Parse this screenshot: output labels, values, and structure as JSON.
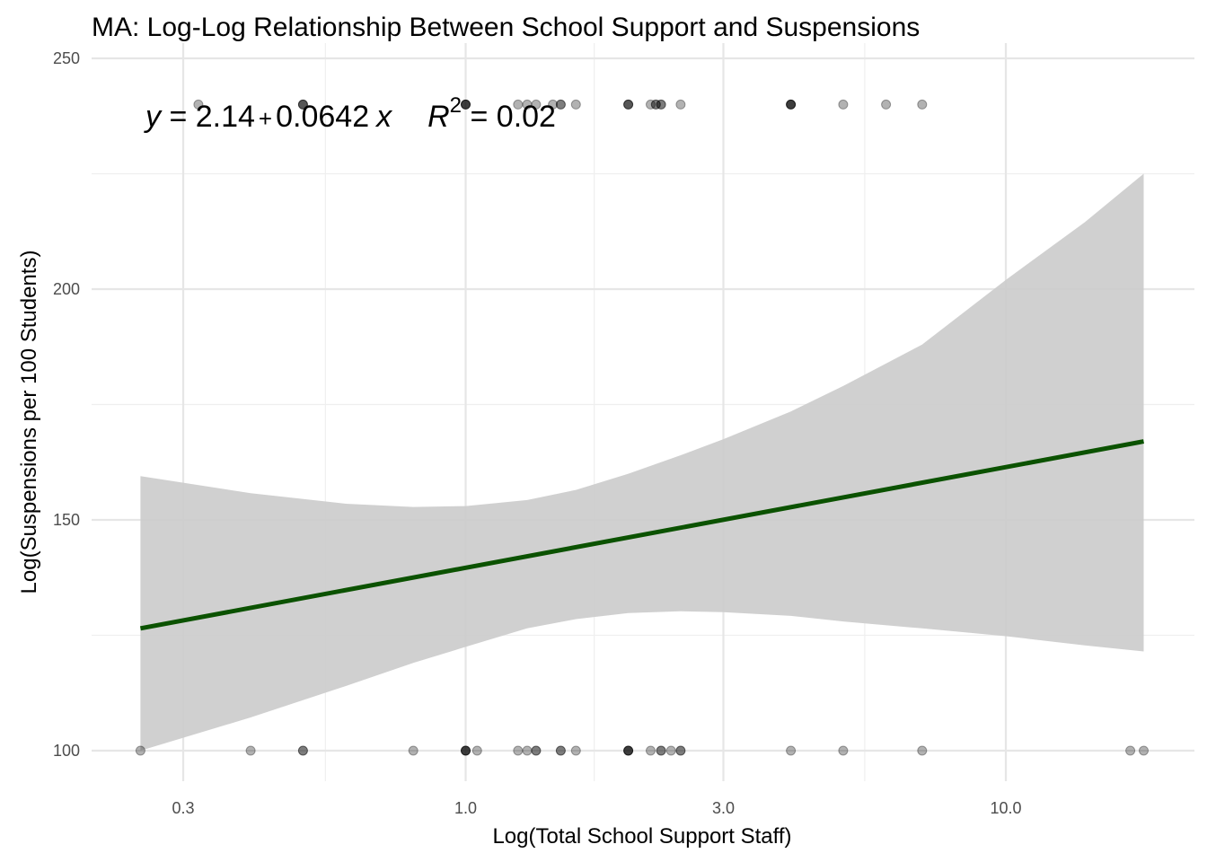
{
  "chart_data": {
    "type": "scatter",
    "title": "MA: Log-Log Relationship Between School Support and Suspensions",
    "xlabel": "Log(Total School Support Staff)",
    "ylabel": "Log(Suspensions per 100 Students)",
    "x_scale": "log10",
    "xlim": [
      0.2,
      20.5
    ],
    "ylim": [
      93,
      252
    ],
    "x_ticks": [
      0.3,
      1.0,
      3.0,
      10.0
    ],
    "x_tick_labels": [
      "0.3",
      "1.0",
      "3.0",
      "10.0"
    ],
    "x_minor_ticks": [
      0.55,
      1.73,
      5.48
    ],
    "y_ticks": [
      100,
      150,
      200,
      250
    ],
    "y_tick_labels": [
      "100",
      "150",
      "200",
      "250"
    ],
    "y_minor_ticks": [
      125,
      175,
      225
    ],
    "grid": true,
    "annotation": {
      "eq_y": "y",
      "eq_equals": " = 2.14",
      "eq_plus": "+",
      "eq_coef": "0.0642",
      "eq_x": "x",
      "r2_R": "R",
      "r2_sup": "2",
      "r2_value": " = 0.02"
    },
    "points": [
      {
        "x": 0.25,
        "y": 100,
        "w": 1
      },
      {
        "x": 0.4,
        "y": 100,
        "w": 1
      },
      {
        "x": 0.5,
        "y": 100,
        "w": 2
      },
      {
        "x": 0.8,
        "y": 100,
        "w": 1
      },
      {
        "x": 1.0,
        "y": 100,
        "w": 4
      },
      {
        "x": 1.05,
        "y": 100,
        "w": 1
      },
      {
        "x": 1.25,
        "y": 100,
        "w": 1
      },
      {
        "x": 1.3,
        "y": 100,
        "w": 1
      },
      {
        "x": 1.35,
        "y": 100,
        "w": 2
      },
      {
        "x": 1.5,
        "y": 100,
        "w": 2
      },
      {
        "x": 1.6,
        "y": 100,
        "w": 1
      },
      {
        "x": 2.0,
        "y": 100,
        "w": 4
      },
      {
        "x": 2.2,
        "y": 100,
        "w": 1
      },
      {
        "x": 2.3,
        "y": 100,
        "w": 2
      },
      {
        "x": 2.4,
        "y": 100,
        "w": 1
      },
      {
        "x": 2.5,
        "y": 100,
        "w": 2
      },
      {
        "x": 4.0,
        "y": 100,
        "w": 1
      },
      {
        "x": 5.0,
        "y": 100,
        "w": 1
      },
      {
        "x": 7.0,
        "y": 100,
        "w": 1
      },
      {
        "x": 17.0,
        "y": 100,
        "w": 1
      },
      {
        "x": 18.0,
        "y": 100,
        "w": 1
      },
      {
        "x": 0.32,
        "y": 240,
        "w": 1
      },
      {
        "x": 0.5,
        "y": 240,
        "w": 3
      },
      {
        "x": 1.0,
        "y": 240,
        "w": 4
      },
      {
        "x": 1.25,
        "y": 240,
        "w": 1
      },
      {
        "x": 1.3,
        "y": 240,
        "w": 1
      },
      {
        "x": 1.35,
        "y": 240,
        "w": 1
      },
      {
        "x": 1.45,
        "y": 240,
        "w": 1
      },
      {
        "x": 1.5,
        "y": 240,
        "w": 2
      },
      {
        "x": 1.6,
        "y": 240,
        "w": 1
      },
      {
        "x": 2.0,
        "y": 240,
        "w": 3
      },
      {
        "x": 2.2,
        "y": 240,
        "w": 1
      },
      {
        "x": 2.25,
        "y": 240,
        "w": 2
      },
      {
        "x": 2.3,
        "y": 240,
        "w": 2
      },
      {
        "x": 2.5,
        "y": 240,
        "w": 1
      },
      {
        "x": 4.0,
        "y": 240,
        "w": 4
      },
      {
        "x": 5.0,
        "y": 240,
        "w": 1
      },
      {
        "x": 6.0,
        "y": 240,
        "w": 1
      },
      {
        "x": 7.0,
        "y": 240,
        "w": 1
      }
    ],
    "fit_line": {
      "color": "#0b5200",
      "x": [
        0.25,
        18.0
      ],
      "y": [
        126.5,
        167.0
      ]
    },
    "confidence_band": {
      "color": "#cccccc",
      "x": [
        0.25,
        0.4,
        0.6,
        0.8,
        1.0,
        1.3,
        1.6,
        2.0,
        2.5,
        3.0,
        4.0,
        5.0,
        7.0,
        10.0,
        14.0,
        18.0
      ],
      "upper": [
        159.5,
        155.8,
        153.5,
        152.8,
        153.0,
        154.3,
        156.5,
        160.0,
        164.0,
        167.5,
        173.5,
        179.0,
        188.0,
        202.0,
        214.5,
        225.0
      ],
      "lower": [
        100.0,
        107.2,
        114.0,
        119.0,
        122.5,
        126.5,
        128.5,
        129.8,
        130.2,
        130.0,
        129.2,
        128.0,
        126.5,
        124.8,
        122.8,
        121.5
      ]
    },
    "point_color": "#000000"
  }
}
